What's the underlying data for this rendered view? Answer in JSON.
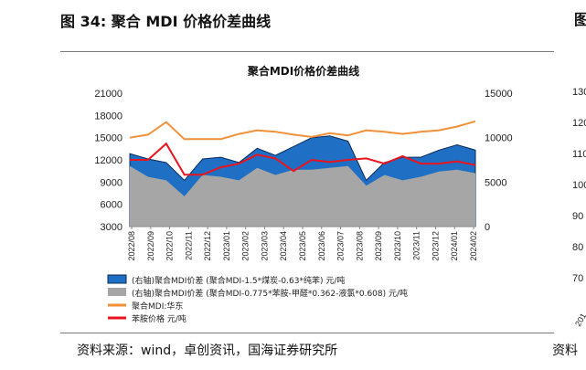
{
  "header": {
    "figure_title": "图 34:  聚合 MDI 价格价差曲线",
    "right_glyph": "图",
    "source": "资料来源：wind，卓创资讯，国海证券研究所",
    "right_source": "资料"
  },
  "colors": {
    "spread_right": "#1f6fc5",
    "spread_right_edge": "#0a2a55",
    "spread_left": "#a6a6a6",
    "mdi_price": "#f0913a",
    "aniline_price": "#e8141e"
  },
  "chart_data": {
    "type": "area",
    "title": "聚合MDI价格价差曲线",
    "x_ticks": [
      "2022/08",
      "2022/09",
      "2022/10",
      "2022/11",
      "2022/12",
      "2023/01",
      "2023/02",
      "2023/03",
      "2023/04",
      "2023/05",
      "2023/06",
      "2023/07",
      "2023/08",
      "2023/09",
      "2023/10",
      "2023/11",
      "2023/12",
      "2024/01",
      "2024/02"
    ],
    "y_left_ticks": [
      "21000",
      "18000",
      "15000",
      "12000",
      "9000",
      "6000",
      "3000"
    ],
    "y_left_range": [
      3000,
      21000
    ],
    "y_right_ticks": [
      "15000",
      "10000",
      "5000",
      "0"
    ],
    "y_right_range": [
      0,
      15000
    ],
    "grid": false,
    "legend_position": "bottom",
    "x": [
      "2022-08",
      "2022-09",
      "2022-10",
      "2022-11",
      "2022-12",
      "2023-01",
      "2023-02",
      "2023-03",
      "2023-04",
      "2023-05",
      "2023-06",
      "2023-07",
      "2023-08",
      "2023-09",
      "2023-10",
      "2023-11",
      "2023-12",
      "2024-01",
      "2024-02",
      "2024-03"
    ],
    "series": [
      {
        "name": "(右轴)聚合MDI价差 (聚合MDI-1.5*煤炭-0.63*纯苯) 元/吨",
        "axis": "right",
        "style": "area",
        "color_key": "spread_right",
        "values": [
          8200,
          7600,
          7200,
          5200,
          7600,
          7800,
          7200,
          8800,
          8000,
          9000,
          10000,
          10200,
          9600,
          5200,
          7200,
          7800,
          7800,
          8600,
          9200,
          8600
        ]
      },
      {
        "name": "(右轴)聚合MDI价差 (聚合MDI-0.775*苯胺-甲醛*0.362-液氯*0.608) 元/吨",
        "axis": "right",
        "style": "area",
        "color_key": "spread_left",
        "values": [
          6800,
          5600,
          5200,
          3400,
          5800,
          5600,
          5200,
          6600,
          5800,
          6400,
          6400,
          6600,
          6800,
          4600,
          5800,
          5200,
          5600,
          6200,
          6400,
          6000
        ]
      },
      {
        "name": "聚合MDI:华东",
        "axis": "left",
        "style": "line",
        "color_key": "mdi_price",
        "values": [
          15000,
          15400,
          17100,
          14800,
          14800,
          14800,
          15500,
          16000,
          15800,
          15400,
          15100,
          15600,
          15300,
          16000,
          15800,
          15500,
          15800,
          16000,
          16500,
          17200
        ]
      },
      {
        "name": "苯胺价格 元/吨",
        "axis": "left",
        "style": "line",
        "color_key": "aniline_price",
        "values": [
          12000,
          12000,
          14200,
          10000,
          10000,
          11000,
          11500,
          12700,
          12200,
          10500,
          12000,
          11700,
          12000,
          12200,
          11500,
          12500,
          11500,
          11500,
          11800,
          11300
        ]
      }
    ]
  },
  "right_chart": {
    "y_ticks": [
      "130",
      "120",
      "110",
      "100",
      "90",
      "80",
      "70"
    ],
    "x_tick": "201"
  }
}
